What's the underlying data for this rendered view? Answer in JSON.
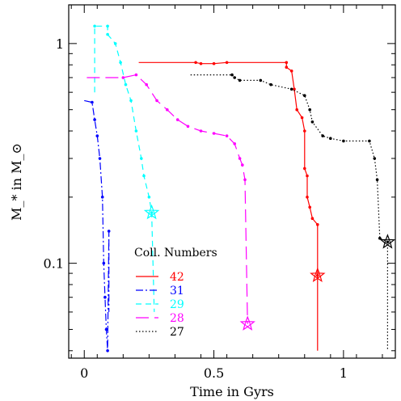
{
  "chart_data": {
    "type": "line",
    "title": "",
    "xlabel": "Time in Gyrs",
    "ylabel": "M_* in M_⊙",
    "xlim": [
      -0.06,
      1.2
    ],
    "ylim": [
      0.037,
      1.5
    ],
    "yscale": "log",
    "grid": false,
    "legend_title": "Coll. Numbers",
    "legend_position": "bottom-center",
    "x_ticks": [
      {
        "value": 0,
        "label": "0"
      },
      {
        "value": 0.5,
        "label": "0.5"
      },
      {
        "value": 1,
        "label": "1"
      }
    ],
    "y_ticks": [
      {
        "value": 0.1,
        "label": "0.1"
      },
      {
        "value": 1,
        "label": "1"
      }
    ],
    "series": [
      {
        "name": "42",
        "color": "#ff0000",
        "dash": "solid",
        "end_marker": {
          "x": 0.9,
          "y": 0.088
        },
        "points": [
          [
            0.21,
            0.82
          ],
          [
            0.43,
            0.82
          ],
          [
            0.45,
            0.81
          ],
          [
            0.5,
            0.81
          ],
          [
            0.55,
            0.82
          ],
          [
            0.78,
            0.82
          ],
          [
            0.78,
            0.78
          ],
          [
            0.8,
            0.75
          ],
          [
            0.81,
            0.62
          ],
          [
            0.82,
            0.5
          ],
          [
            0.84,
            0.46
          ],
          [
            0.85,
            0.4
          ],
          [
            0.85,
            0.27
          ],
          [
            0.86,
            0.25
          ],
          [
            0.86,
            0.2
          ],
          [
            0.87,
            0.18
          ],
          [
            0.88,
            0.16
          ],
          [
            0.9,
            0.15
          ],
          [
            0.9,
            0.088
          ],
          [
            0.9,
            0.04
          ]
        ]
      },
      {
        "name": "31",
        "color": "#0000ff",
        "dash": "dashdot",
        "points": [
          [
            0.0,
            0.55
          ],
          [
            0.03,
            0.54
          ],
          [
            0.04,
            0.45
          ],
          [
            0.05,
            0.38
          ],
          [
            0.06,
            0.3
          ],
          [
            0.07,
            0.2
          ],
          [
            0.075,
            0.1
          ],
          [
            0.08,
            0.07
          ],
          [
            0.085,
            0.05
          ],
          [
            0.09,
            0.04
          ],
          [
            0.095,
            0.14
          ],
          [
            0.095,
            0.06
          ]
        ]
      },
      {
        "name": "29",
        "color": "#00ffff",
        "dash": "dashed",
        "end_marker": {
          "x": 0.26,
          "y": 0.17
        },
        "points": [
          [
            0.04,
            0.6
          ],
          [
            0.04,
            1.2
          ],
          [
            0.09,
            1.2
          ],
          [
            0.09,
            1.1
          ],
          [
            0.12,
            1.0
          ],
          [
            0.14,
            0.82
          ],
          [
            0.16,
            0.65
          ],
          [
            0.18,
            0.55
          ],
          [
            0.2,
            0.4
          ],
          [
            0.22,
            0.3
          ],
          [
            0.23,
            0.25
          ],
          [
            0.25,
            0.2
          ],
          [
            0.26,
            0.17
          ],
          [
            0.27,
            0.06
          ]
        ]
      },
      {
        "name": "28",
        "color": "#ff00ff",
        "dash": "longdash",
        "end_marker": {
          "x": 0.63,
          "y": 0.053
        },
        "points": [
          [
            0.01,
            0.7
          ],
          [
            0.15,
            0.7
          ],
          [
            0.2,
            0.72
          ],
          [
            0.24,
            0.65
          ],
          [
            0.28,
            0.55
          ],
          [
            0.32,
            0.5
          ],
          [
            0.36,
            0.45
          ],
          [
            0.4,
            0.42
          ],
          [
            0.45,
            0.4
          ],
          [
            0.5,
            0.39
          ],
          [
            0.55,
            0.38
          ],
          [
            0.58,
            0.35
          ],
          [
            0.6,
            0.3
          ],
          [
            0.61,
            0.28
          ],
          [
            0.62,
            0.24
          ],
          [
            0.63,
            0.053
          ]
        ]
      },
      {
        "name": "27",
        "color": "#000000",
        "dash": "dotted",
        "end_marker": {
          "x": 1.17,
          "y": 0.125
        },
        "points": [
          [
            0.41,
            0.72
          ],
          [
            0.57,
            0.72
          ],
          [
            0.58,
            0.7
          ],
          [
            0.6,
            0.68
          ],
          [
            0.68,
            0.68
          ],
          [
            0.72,
            0.65
          ],
          [
            0.8,
            0.62
          ],
          [
            0.85,
            0.58
          ],
          [
            0.87,
            0.5
          ],
          [
            0.88,
            0.44
          ],
          [
            0.92,
            0.38
          ],
          [
            0.95,
            0.37
          ],
          [
            1.0,
            0.36
          ],
          [
            1.1,
            0.36
          ],
          [
            1.12,
            0.3
          ],
          [
            1.13,
            0.24
          ],
          [
            1.14,
            0.13
          ],
          [
            1.17,
            0.125
          ],
          [
            1.17,
            0.04
          ]
        ]
      }
    ]
  }
}
